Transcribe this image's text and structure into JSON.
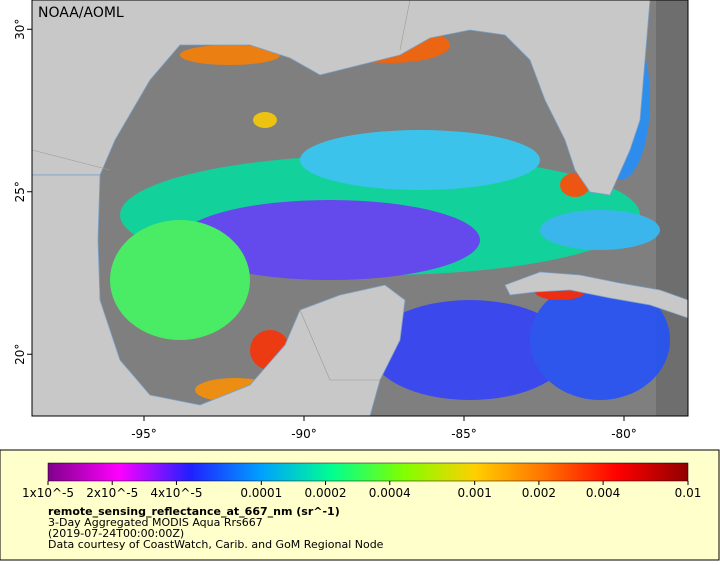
{
  "map": {
    "label": "NOAA/AOML",
    "lon_range": [
      -98.5,
      -78
    ],
    "lat_range": [
      18.1,
      30.9
    ],
    "lon_ticks": [
      {
        "value": -95,
        "label": "-95°"
      },
      {
        "value": -90,
        "label": "-90°"
      },
      {
        "value": -85,
        "label": "-85°"
      },
      {
        "value": -80,
        "label": "-80°"
      }
    ],
    "lat_ticks": [
      {
        "value": 30,
        "label": "30°"
      },
      {
        "value": 25,
        "label": "25°"
      },
      {
        "value": 20,
        "label": "20°"
      }
    ]
  },
  "colorbar": {
    "range": [
      1e-05,
      0.01
    ],
    "log": true,
    "colors": [
      "#80008a",
      "#ff00ff",
      "#2020ff",
      "#00a0ff",
      "#00ff90",
      "#80ff00",
      "#ffd000",
      "#ff7000",
      "#ff0000",
      "#900000"
    ],
    "ticks": [
      {
        "value": 1e-05,
        "label": "1x10^-5"
      },
      {
        "value": 2e-05,
        "label": "2x10^-5"
      },
      {
        "value": 4e-05,
        "label": "4x10^-5"
      },
      0.0001,
      0.0002,
      0.0004,
      0.001,
      0.002,
      0.004,
      0.01
    ]
  },
  "caption": {
    "variable": "remote_sensing_reflectance_at_667_nm (sr^-1)",
    "product": "3-Day Aggregated MODIS Aqua Rrs667",
    "time": "(2019-07-24T00:00:00Z)",
    "credit": "Data courtesy of CoastWatch, Carib. and GoM Regional Node"
  }
}
